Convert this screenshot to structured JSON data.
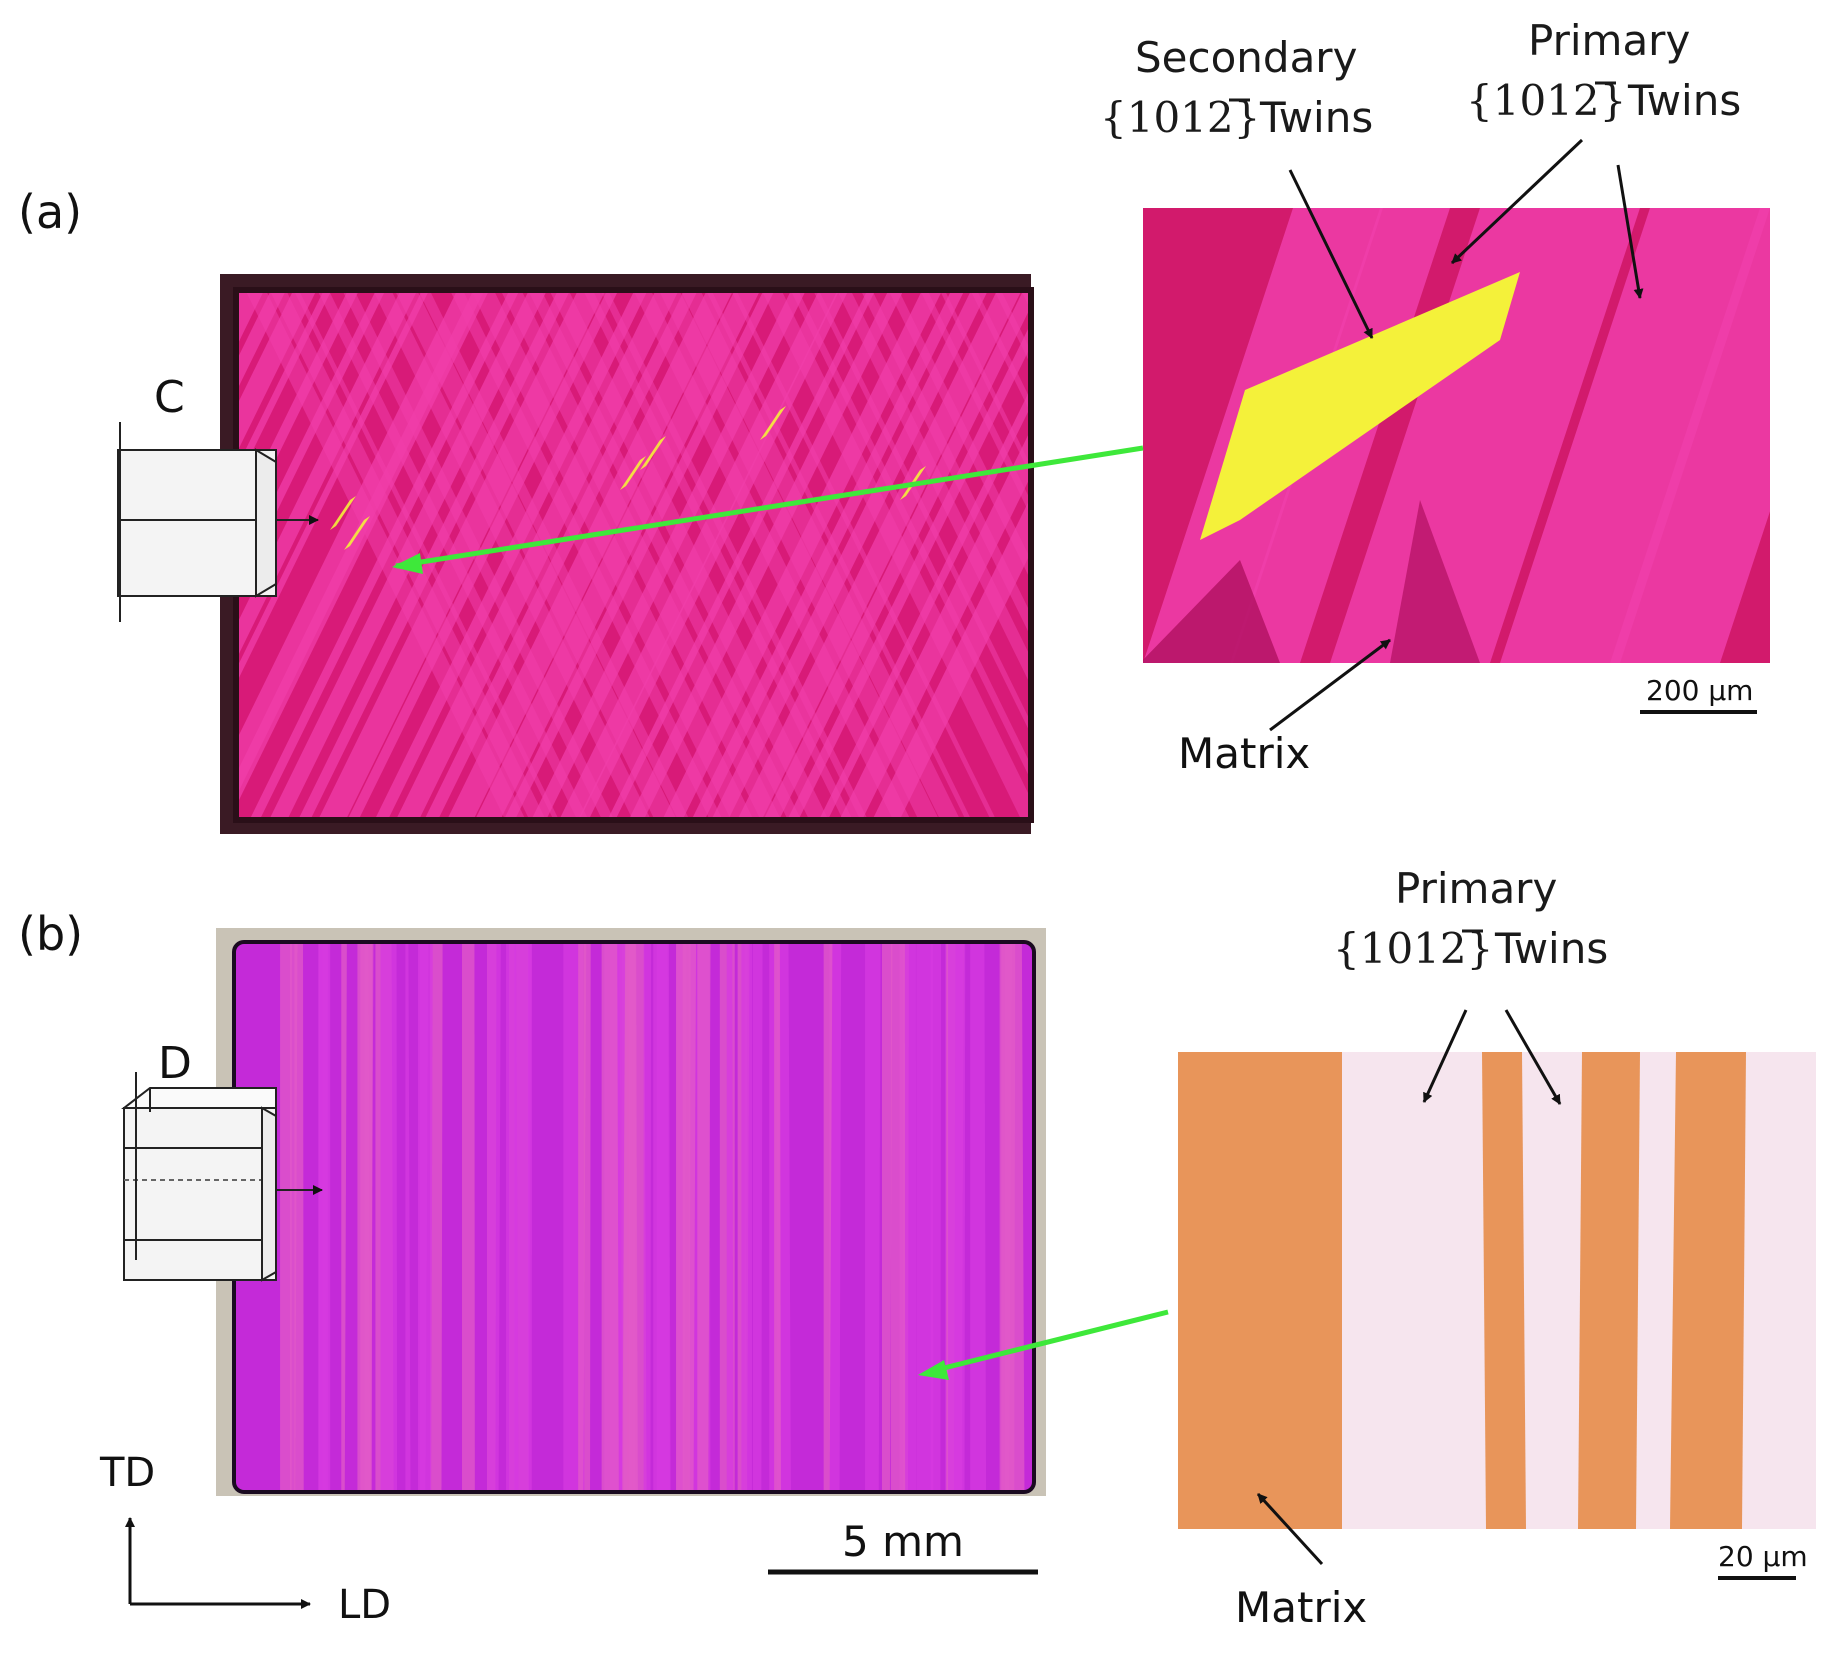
{
  "panel_a": {
    "label": "(a)",
    "crystal_label": "C",
    "callout_secondary": {
      "line1": "Secondary",
      "plane": "{10",
      "bar": "1",
      "plane_end": "2}",
      "suffix": "Twins"
    },
    "callout_primary": {
      "line1": "Primary",
      "plane": "{10",
      "bar": "1",
      "plane_end": "2}",
      "suffix": "Twins"
    },
    "matrix_label": "Matrix",
    "scale_bar": "200 µm"
  },
  "panel_b": {
    "label": "(b)",
    "crystal_label": "D",
    "callout_primary": {
      "line1": "Primary",
      "plane": "{10",
      "bar": "1",
      "plane_end": "2}",
      "suffix": "Twins"
    },
    "matrix_label": "Matrix",
    "scale_bar": "20 µm",
    "macro_scale_bar": "5 mm"
  },
  "axes": {
    "vertical": "TD",
    "horizontal": "LD"
  },
  "colors": {
    "matrix_magenta": "#d0106a",
    "twin_pink": "#f03eaa",
    "secondary_yellow": "#f4f13a",
    "panel_b_violet": "#d63ae0",
    "micro_b_orange": "#e8955a",
    "micro_b_white": "#f5e4ee",
    "arrow_green": "#3ee83a"
  }
}
